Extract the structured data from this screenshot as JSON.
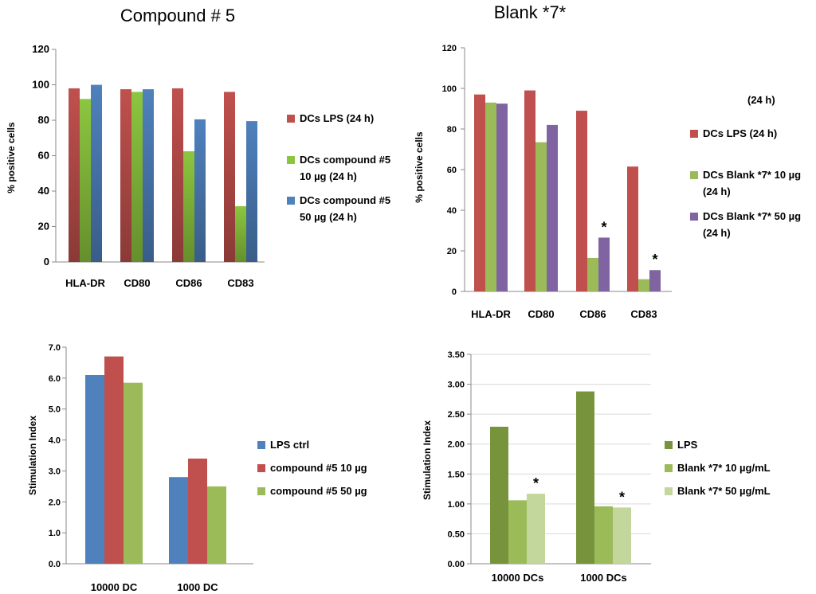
{
  "chart_data": [
    {
      "type": "bar",
      "title": "Compound # 5",
      "ylabel": "% positive cells",
      "ylim": [
        0,
        120
      ],
      "yticks": [
        "0",
        "20",
        "40",
        "60",
        "80",
        "100",
        "120"
      ],
      "categories": [
        "HLA-DR",
        "CD80",
        "CD86",
        "CD83"
      ],
      "legend_position": "right",
      "grid": false,
      "series": [
        {
          "name": "DCs LPS (24 h)",
          "color": "#c0504d",
          "values": [
            98,
            97.5,
            98,
            96
          ]
        },
        {
          "name": "DCs compound #5 10 µg (24 h)",
          "color": "#8cc63f",
          "values": [
            92,
            96,
            62.5,
            31.5
          ]
        },
        {
          "name": "DCs compound #5 50 µg (24 h)",
          "color": "#4f81bd",
          "values": [
            100,
            97.5,
            80.5,
            79.5
          ]
        }
      ],
      "annotations": []
    },
    {
      "type": "bar",
      "title": "Blank *7*",
      "ylabel": "% positive cells",
      "ylim": [
        0,
        120
      ],
      "yticks": [
        "0",
        "20",
        "40",
        "60",
        "80",
        "100",
        "120"
      ],
      "categories": [
        "HLA-DR",
        "CD80",
        "CD86",
        "CD83"
      ],
      "legend_position": "right",
      "legend_note": "(24 h)",
      "grid": false,
      "series": [
        {
          "name": "DCs LPS (24 h)",
          "color": "#c0504d",
          "values": [
            97,
            99,
            89,
            61.5
          ]
        },
        {
          "name": "DCs Blank *7* 10 µg (24 h)",
          "color": "#9bbb59",
          "values": [
            93,
            73.5,
            16.5,
            6
          ]
        },
        {
          "name": "DCs Blank *7* 50 µg (24 h)",
          "color": "#8064a2",
          "values": [
            92.5,
            82,
            26.5,
            10.5
          ]
        }
      ],
      "annotations": [
        {
          "text": "*",
          "category": "CD86",
          "series": 2
        },
        {
          "text": "*",
          "category": "CD83",
          "series": 2
        }
      ]
    },
    {
      "type": "bar",
      "title": "",
      "ylabel": "Stimulation Index",
      "ylim": [
        0,
        7
      ],
      "yticks": [
        "0.0",
        "1.0",
        "2.0",
        "3.0",
        "4.0",
        "5.0",
        "6.0",
        "7.0"
      ],
      "categories": [
        "10000 DC",
        "1000 DC"
      ],
      "legend_position": "right",
      "grid": false,
      "series": [
        {
          "name": "LPS ctrl",
          "color": "#4f81bd",
          "values": [
            6.1,
            2.8
          ]
        },
        {
          "name": "compound #5 10 µg",
          "color": "#c0504d",
          "values": [
            6.7,
            3.4
          ]
        },
        {
          "name": "compound #5 50 µg",
          "color": "#9bbb59",
          "values": [
            5.85,
            2.5
          ]
        }
      ],
      "annotations": []
    },
    {
      "type": "bar",
      "title": "",
      "ylabel": "Stimulation Index",
      "ylim": [
        0,
        3.5
      ],
      "yticks": [
        "0.00",
        "0.50",
        "1.00",
        "1.50",
        "2.00",
        "2.50",
        "3.00",
        "3.50"
      ],
      "categories": [
        "10000 DCs",
        "1000 DCs"
      ],
      "legend_position": "right",
      "grid": true,
      "series": [
        {
          "name": "LPS",
          "color": "#77933c",
          "values": [
            2.29,
            2.88
          ]
        },
        {
          "name": "Blank *7* 10 µg/mL",
          "color": "#9bbb59",
          "values": [
            1.06,
            0.96
          ]
        },
        {
          "name": "Blank *7* 50 µg/mL",
          "color": "#c3d69b",
          "values": [
            1.17,
            0.94
          ]
        }
      ],
      "annotations": [
        {
          "text": "*",
          "category": "10000 DCs",
          "series": 2
        },
        {
          "text": "*",
          "category": "1000 DCs",
          "series": 2
        }
      ]
    }
  ]
}
